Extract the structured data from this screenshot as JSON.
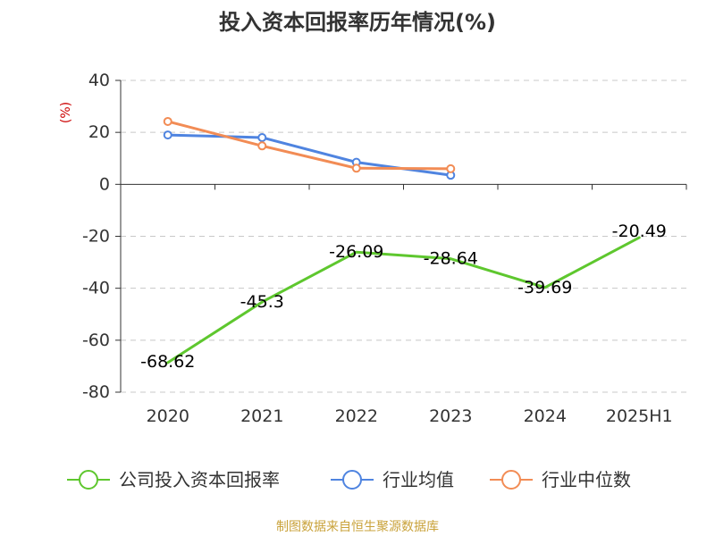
{
  "chart_data": {
    "type": "line",
    "title": "投入资本回报率历年情况(%)",
    "ylabel": "(%)",
    "xlabel": "",
    "categories": [
      "2020",
      "2021",
      "2022",
      "2023",
      "2024",
      "2025H1"
    ],
    "ylim": [
      -80,
      40
    ],
    "yticks": [
      40,
      20,
      0,
      -20,
      -40,
      -60,
      -80
    ],
    "grid": true,
    "legend_position": "bottom",
    "series": [
      {
        "name": "公司投入资本回报率",
        "color": "#5ec72e",
        "values": [
          -68.62,
          -45.3,
          -26.09,
          -28.64,
          -39.69,
          -20.49
        ],
        "labels": [
          "-68.62",
          "-45.3",
          "-26.09",
          "-28.64",
          "-39.69",
          "-20.49"
        ]
      },
      {
        "name": "行业均值",
        "color": "#4f84e0",
        "values": [
          19,
          18,
          8.5,
          3.5,
          null,
          null
        ]
      },
      {
        "name": "行业中位数",
        "color": "#f28c55",
        "values": [
          24.2,
          14.8,
          6.2,
          6.0,
          null,
          null
        ]
      }
    ]
  },
  "source": "制图数据来自恒生聚源数据库"
}
